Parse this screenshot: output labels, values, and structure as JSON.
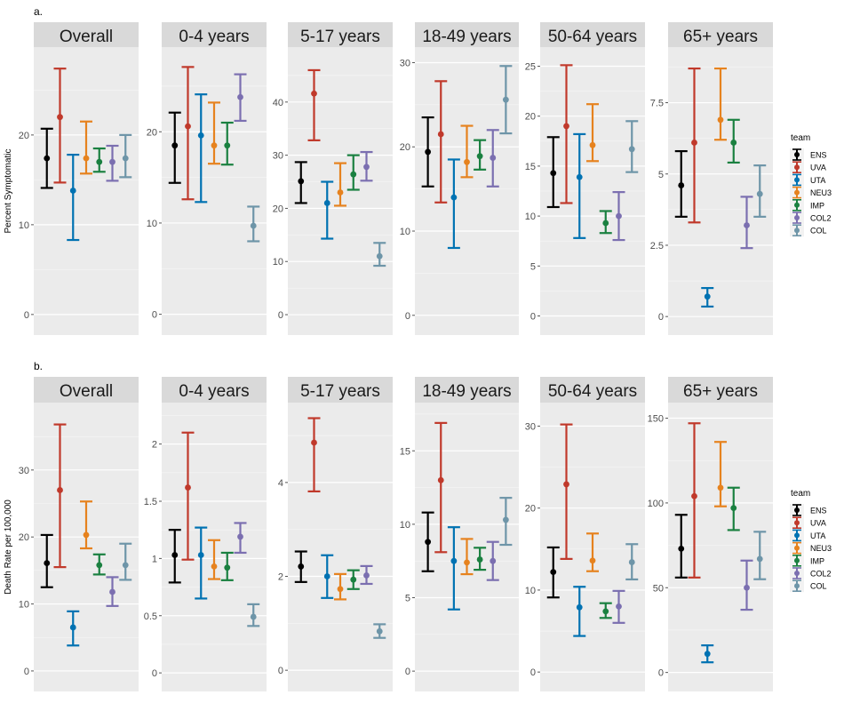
{
  "chart_data": {
    "type": "errorbar",
    "legend_title": "team",
    "legend_position": "right",
    "teams": [
      {
        "name": "ENS",
        "color": "#000000"
      },
      {
        "name": "UVA",
        "color": "#c0392b"
      },
      {
        "name": "UTA",
        "color": "#0072b2"
      },
      {
        "name": "NEU3",
        "color": "#e6821e"
      },
      {
        "name": "IMP",
        "color": "#1a8040"
      },
      {
        "name": "COL2",
        "color": "#7b6fb0"
      },
      {
        "name": "COL",
        "color": "#6e95a8"
      }
    ],
    "rows": [
      {
        "label": "a.",
        "ylabel": "Percent Symptomatic",
        "facets": [
          {
            "title": "Overall",
            "ylim": [
              -1.5,
              29
            ],
            "ticks": [
              0,
              10,
              20
            ],
            "mid": [
              17.4,
              22.0,
              13.8,
              17.4,
              17.0,
              17.0,
              17.4
            ],
            "low": [
              14.1,
              14.7,
              8.3,
              15.7,
              15.9,
              14.9,
              15.3
            ],
            "high": [
              20.7,
              27.4,
              17.8,
              21.5,
              18.5,
              18.8,
              20.0
            ]
          },
          {
            "title": "0-4 years",
            "ylim": [
              -1.5,
              28.5
            ],
            "ticks": [
              0,
              10,
              20
            ],
            "mid": [
              18.5,
              20.6,
              19.6,
              18.5,
              18.5,
              23.8,
              9.7
            ],
            "low": [
              14.4,
              12.6,
              12.3,
              16.5,
              16.4,
              21.2,
              8.0
            ],
            "high": [
              22.1,
              27.1,
              24.1,
              23.2,
              21.0,
              26.3,
              11.8
            ]
          },
          {
            "title": "5-17 years",
            "ylim": [
              -2.5,
              49
            ],
            "ticks": [
              0,
              10,
              20,
              30,
              40
            ],
            "mid": [
              25.1,
              41.6,
              21.0,
              23.0,
              26.4,
              27.8,
              11.0
            ],
            "low": [
              21.0,
              32.8,
              14.3,
              20.5,
              23.5,
              25.2,
              9.2
            ],
            "high": [
              28.7,
              46.0,
              25.0,
              28.5,
              30.0,
              30.6,
              13.5
            ]
          },
          {
            "title": "18-49 years",
            "ylim": [
              -1.5,
              31
            ],
            "ticks": [
              0,
              10,
              20,
              30
            ],
            "mid": [
              19.4,
              21.5,
              14.0,
              18.2,
              18.9,
              18.7,
              25.6
            ],
            "low": [
              15.3,
              13.4,
              8.0,
              16.4,
              17.3,
              15.3,
              21.6
            ],
            "high": [
              23.5,
              27.8,
              18.5,
              22.5,
              20.8,
              22.0,
              29.6
            ]
          },
          {
            "title": "50-64 years",
            "ylim": [
              -1.2,
              26.2
            ],
            "ticks": [
              0,
              5,
              10,
              15,
              20,
              25
            ],
            "mid": [
              14.3,
              19.0,
              13.9,
              17.1,
              9.3,
              10.0,
              16.7
            ],
            "low": [
              10.9,
              11.3,
              7.8,
              15.5,
              8.3,
              7.6,
              14.4
            ],
            "high": [
              17.9,
              25.1,
              18.2,
              21.2,
              10.5,
              12.4,
              19.5
            ]
          },
          {
            "title": "65+ years",
            "ylim": [
              -0.4,
              9.2
            ],
            "ticks": [
              0.0,
              2.5,
              5.0,
              7.5
            ],
            "mid": [
              4.6,
              6.1,
              0.7,
              6.9,
              6.1,
              3.2,
              4.3
            ],
            "low": [
              3.5,
              3.3,
              0.35,
              6.2,
              5.4,
              2.4,
              3.5
            ],
            "high": [
              5.8,
              8.7,
              1.0,
              8.7,
              6.9,
              4.2,
              5.3
            ]
          }
        ]
      },
      {
        "label": "b.",
        "ylabel": "Death Rate per 100,000",
        "facets": [
          {
            "title": "Overall",
            "ylim": [
              -2,
              39
            ],
            "ticks": [
              0,
              10,
              20,
              30
            ],
            "mid": [
              16.1,
              27.0,
              6.5,
              20.3,
              15.8,
              11.8,
              15.8
            ],
            "low": [
              12.5,
              15.5,
              3.8,
              18.3,
              14.4,
              9.7,
              13.6
            ],
            "high": [
              20.3,
              36.8,
              8.9,
              25.3,
              17.4,
              14.0,
              19.0
            ]
          },
          {
            "title": "0-4 years",
            "ylim": [
              -0.1,
              2.3
            ],
            "ticks": [
              0.0,
              0.5,
              1.0,
              1.5,
              2.0
            ],
            "mid": [
              1.03,
              1.62,
              1.03,
              0.93,
              0.92,
              1.19,
              0.49
            ],
            "low": [
              0.79,
              0.99,
              0.65,
              0.82,
              0.81,
              1.05,
              0.41
            ],
            "high": [
              1.25,
              2.1,
              1.27,
              1.16,
              1.05,
              1.31,
              0.6
            ]
          },
          {
            "title": "5-17 years",
            "ylim": [
              -0.3,
              5.55
            ],
            "ticks": [
              0,
              2,
              4
            ],
            "mid": [
              2.21,
              4.85,
              2.0,
              1.73,
              1.93,
              2.02,
              0.83
            ],
            "low": [
              1.88,
              3.81,
              1.54,
              1.51,
              1.73,
              1.84,
              0.69
            ],
            "high": [
              2.53,
              5.37,
              2.45,
              2.05,
              2.13,
              2.22,
              0.98
            ]
          },
          {
            "title": "18-49 years",
            "ylim": [
              -0.9,
              17.8
            ],
            "ticks": [
              0,
              5,
              10,
              15
            ],
            "mid": [
              8.8,
              13.0,
              7.5,
              7.4,
              7.6,
              7.5,
              10.3
            ],
            "low": [
              6.8,
              8.1,
              4.2,
              6.6,
              6.9,
              6.2,
              8.6
            ],
            "high": [
              10.8,
              16.9,
              9.8,
              9.0,
              8.4,
              8.8,
              11.8
            ]
          },
          {
            "title": "50-64 years",
            "ylim": [
              -1.5,
              32
            ],
            "ticks": [
              0,
              10,
              20,
              30
            ],
            "mid": [
              12.2,
              22.9,
              7.9,
              13.6,
              7.4,
              8.0,
              13.4
            ],
            "low": [
              9.1,
              13.8,
              4.4,
              12.3,
              6.6,
              6.0,
              11.3
            ],
            "high": [
              15.2,
              30.2,
              10.4,
              16.9,
              8.4,
              9.9,
              15.6
            ]
          },
          {
            "title": "65+ years",
            "ylim": [
              -7,
              155
            ],
            "ticks": [
              0,
              50,
              100,
              150
            ],
            "mid": [
              73,
              104,
              11,
              109,
              97,
              50,
              67
            ],
            "low": [
              56,
              56,
              6,
              98,
              84,
              37,
              55
            ],
            "high": [
              93,
              147,
              16,
              136,
              109,
              66,
              83
            ]
          }
        ]
      }
    ]
  }
}
